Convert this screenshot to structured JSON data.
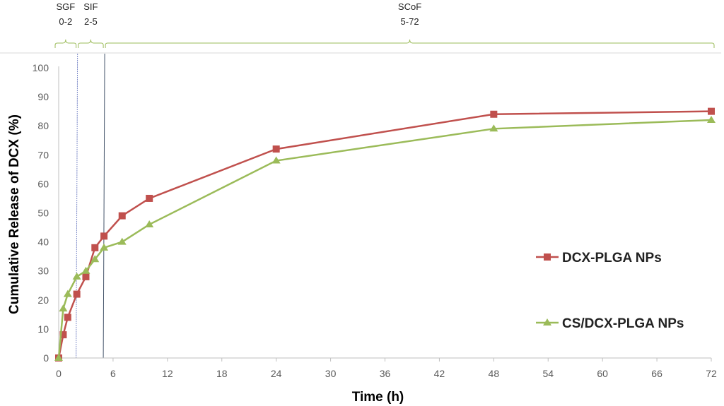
{
  "chart_data": {
    "type": "line",
    "xlabel": "Time (h)",
    "ylabel": "Cumulative Release of DCX (%)",
    "xlim": [
      0,
      72
    ],
    "ylim": [
      0,
      100
    ],
    "xticks": [
      0,
      6,
      12,
      18,
      24,
      30,
      36,
      42,
      48,
      54,
      60,
      66,
      72
    ],
    "yticks": [
      0,
      10,
      20,
      30,
      40,
      50,
      60,
      70,
      80,
      90,
      100
    ],
    "grid": false,
    "legend": "right",
    "series": [
      {
        "name": "DCX-PLGA NPs",
        "color": "#C0504D",
        "marker": "square",
        "points": [
          [
            0,
            0
          ],
          [
            0.5,
            8
          ],
          [
            1,
            14
          ],
          [
            2,
            22
          ],
          [
            3,
            28
          ],
          [
            4,
            38
          ],
          [
            5,
            42
          ],
          [
            7,
            49
          ],
          [
            10,
            55
          ],
          [
            24,
            72
          ],
          [
            48,
            84
          ],
          [
            72,
            85
          ]
        ]
      },
      {
        "name": "CS/DCX-PLGA NPs",
        "color": "#9BBB59",
        "marker": "triangle",
        "points": [
          [
            0,
            0
          ],
          [
            0.5,
            17
          ],
          [
            1,
            22
          ],
          [
            2,
            28
          ],
          [
            3,
            30
          ],
          [
            4,
            34
          ],
          [
            5,
            38
          ],
          [
            7,
            40
          ],
          [
            10,
            46
          ],
          [
            24,
            68
          ],
          [
            48,
            79
          ],
          [
            72,
            82
          ]
        ]
      }
    ],
    "phase_lines": [
      2,
      5
    ],
    "phases": [
      {
        "name": "SGF",
        "range": "0-2",
        "start": 0,
        "end": 2
      },
      {
        "name": "SIF",
        "range": "2-5",
        "start": 2,
        "end": 5
      },
      {
        "name": "SCoF",
        "range": "5-72",
        "start": 5,
        "end": 72
      }
    ]
  }
}
